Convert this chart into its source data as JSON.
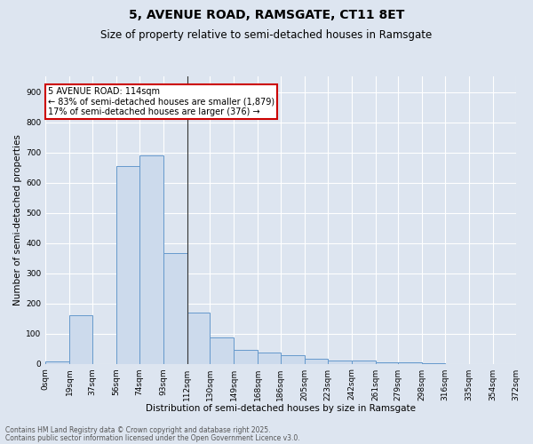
{
  "title1": "5, AVENUE ROAD, RAMSGATE, CT11 8ET",
  "title2": "Size of property relative to semi-detached houses in Ramsgate",
  "xlabel": "Distribution of semi-detached houses by size in Ramsgate",
  "ylabel": "Number of semi-detached properties",
  "bar_color": "#ccdaec",
  "bar_edge_color": "#6699cc",
  "bg_color": "#dde5f0",
  "grid_color": "#ffffff",
  "bin_edges": [
    0,
    19,
    37,
    56,
    74,
    93,
    112,
    130,
    149,
    168,
    186,
    205,
    223,
    242,
    261,
    279,
    298,
    316,
    335,
    354,
    372
  ],
  "tick_labels": [
    "0sqm",
    "19sqm",
    "37sqm",
    "56sqm",
    "74sqm",
    "93sqm",
    "112sqm",
    "130sqm",
    "149sqm",
    "168sqm",
    "186sqm",
    "205sqm",
    "223sqm",
    "242sqm",
    "261sqm",
    "279sqm",
    "298sqm",
    "316sqm",
    "335sqm",
    "354sqm",
    "372sqm"
  ],
  "values": [
    7,
    160,
    0,
    655,
    690,
    365,
    170,
    87,
    47,
    38,
    28,
    15,
    12,
    10,
    5,
    4,
    2,
    0,
    0,
    0
  ],
  "ylim": [
    0,
    950
  ],
  "yticks": [
    0,
    100,
    200,
    300,
    400,
    500,
    600,
    700,
    800,
    900
  ],
  "vline_x": 112,
  "annotation_line1": "5 AVENUE ROAD: 114sqm",
  "annotation_line2": "← 83% of semi-detached houses are smaller (1,879)",
  "annotation_line3": "17% of semi-detached houses are larger (376) →",
  "annotation_box_color": "#ffffff",
  "annotation_border_color": "#cc0000",
  "footer1": "Contains HM Land Registry data © Crown copyright and database right 2025.",
  "footer2": "Contains public sector information licensed under the Open Government Licence v3.0.",
  "title1_fontsize": 10,
  "title2_fontsize": 8.5,
  "axis_label_fontsize": 7.5,
  "tick_fontsize": 6.5,
  "annotation_fontsize": 7,
  "footer_fontsize": 5.5
}
